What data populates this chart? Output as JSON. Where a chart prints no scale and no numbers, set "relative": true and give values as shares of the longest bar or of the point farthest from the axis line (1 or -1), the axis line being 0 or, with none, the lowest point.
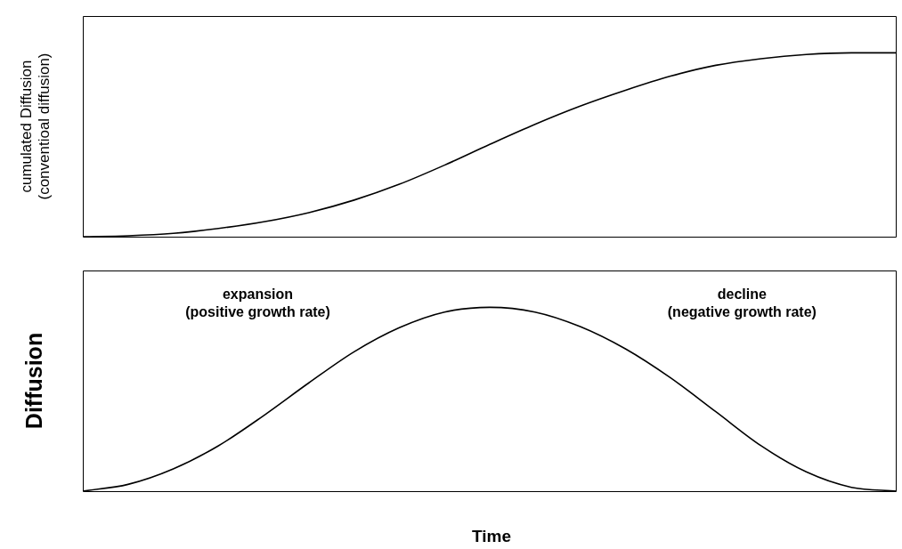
{
  "chart_data": [
    {
      "type": "line",
      "ylabel": "cumulated Diffusion\n(conventioal diffusion)",
      "relative": true,
      "legend": false,
      "categories": [
        null,
        null,
        null,
        null,
        null,
        null,
        null,
        null,
        null,
        null,
        null,
        null,
        null,
        null,
        null,
        null,
        null,
        null,
        null
      ],
      "series": [
        {
          "color": "#000000",
          "values": [
            0,
            0.005,
            0.018,
            0.045,
            0.081,
            0.131,
            0.199,
            0.285,
            0.389,
            0.502,
            0.611,
            0.71,
            0.796,
            0.873,
            0.932,
            0.968,
            0.991,
            1,
            1
          ]
        }
      ]
    },
    {
      "type": "line",
      "ylabel": "Diffusion",
      "xlabel": "Time",
      "relative": true,
      "legend": false,
      "annotations": [
        "expansion\n(positive growth rate)",
        "decline\n(negative growth rate)"
      ],
      "categories": [
        null,
        null,
        null,
        null,
        null,
        null,
        null,
        null,
        null,
        null,
        null,
        null,
        null,
        null,
        null,
        null,
        null,
        null,
        null
      ],
      "series": [
        {
          "color": "#000000",
          "values": [
            0,
            0.037,
            0.121,
            0.247,
            0.411,
            0.589,
            0.758,
            0.889,
            0.974,
            1,
            0.974,
            0.895,
            0.774,
            0.616,
            0.432,
            0.247,
            0.105,
            0.021,
            0
          ]
        }
      ]
    }
  ]
}
